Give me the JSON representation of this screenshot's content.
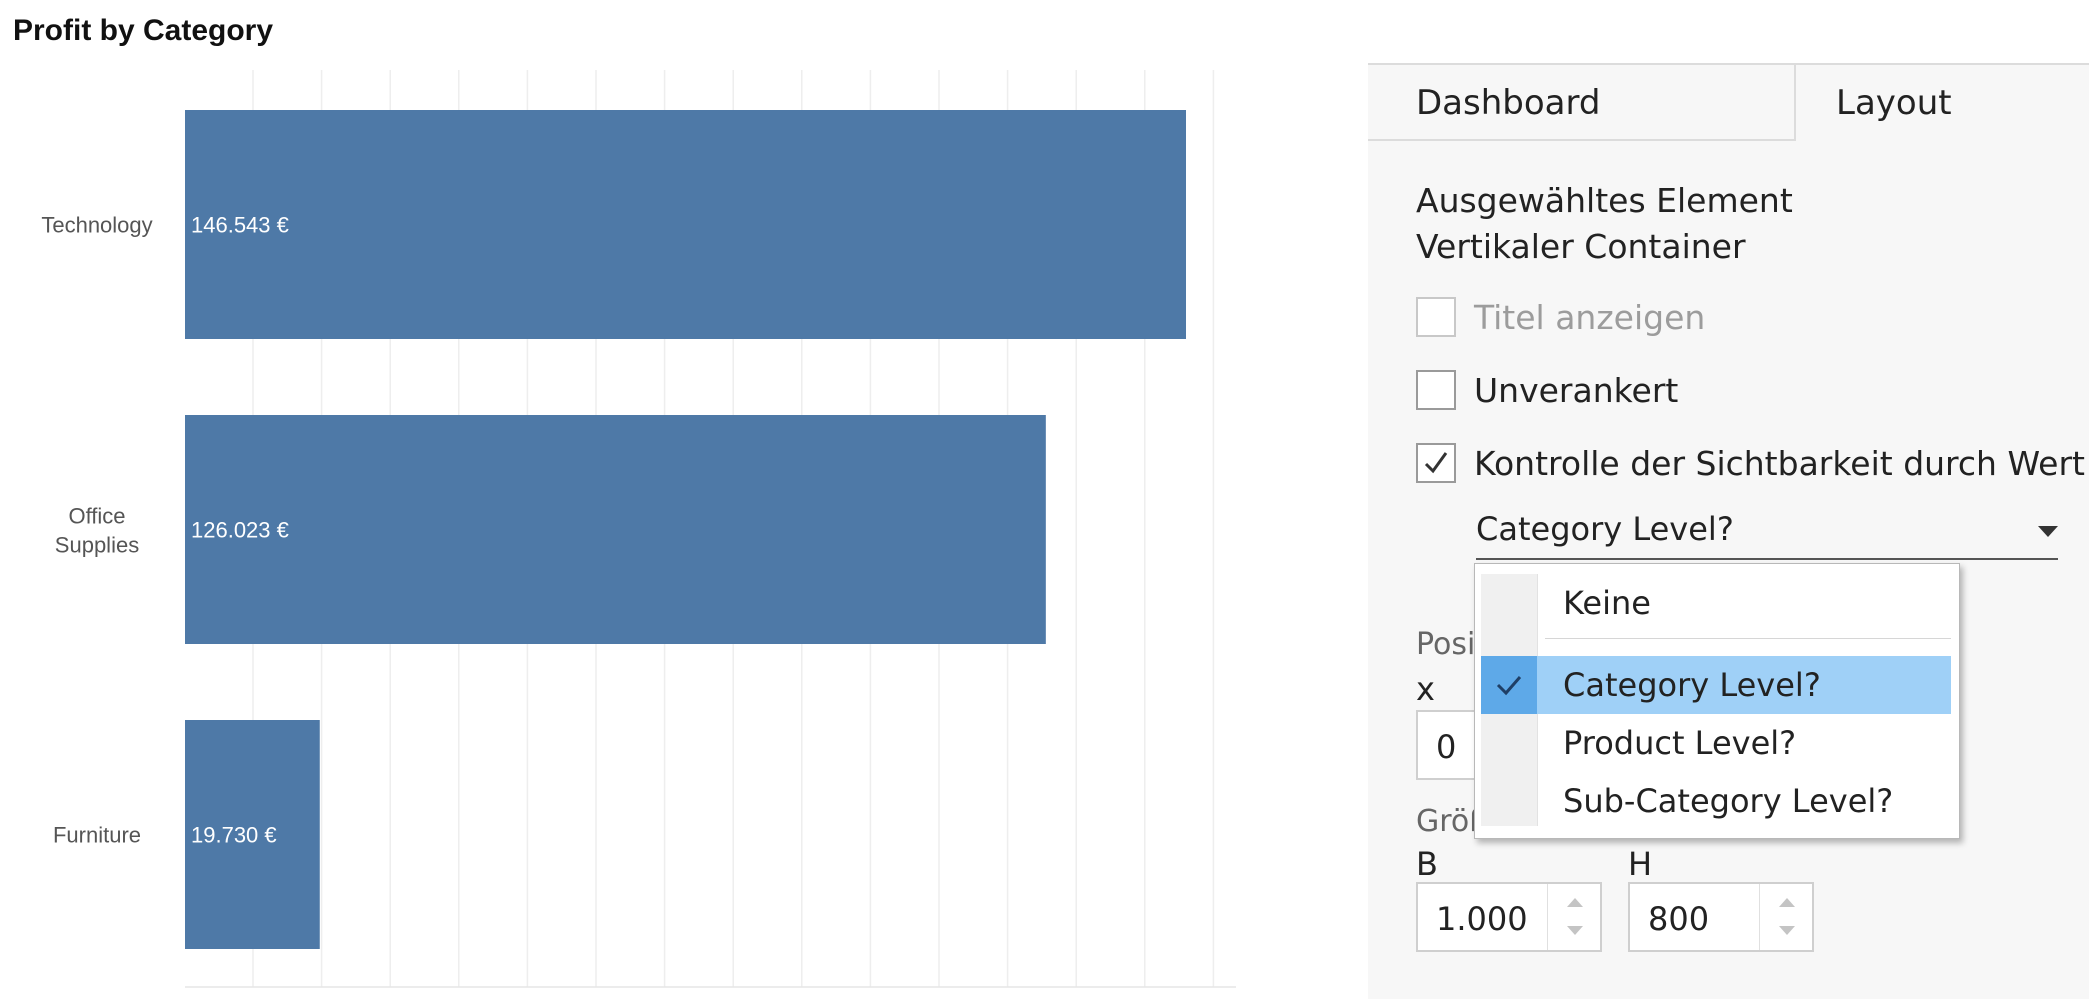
{
  "chart": {
    "title": "Profit by Category"
  },
  "chart_data": {
    "type": "bar",
    "orientation": "horizontal",
    "title": "Profit by Category",
    "categories": [
      "Technology",
      "Office Supplies",
      "Furniture"
    ],
    "values": [
      146543,
      126023,
      19730
    ],
    "data_labels": [
      "146.543 €",
      "126.023 €",
      "19.730 €"
    ],
    "xlim": [
      0,
      150000
    ],
    "grid": true,
    "bar_color": "#4e79a7"
  },
  "panel": {
    "tabs": [
      {
        "label": "Dashboard",
        "active": false
      },
      {
        "label": "Layout",
        "active": true
      }
    ],
    "selected_element_heading": "Ausgewähltes Element",
    "selected_element_name": "Vertikaler Container",
    "checkboxes": [
      {
        "label": "Titel anzeigen",
        "checked": false,
        "disabled": true
      },
      {
        "label": "Unverankert",
        "checked": false,
        "disabled": false
      },
      {
        "label": "Kontrolle der Sichtbarkeit durch Wert",
        "checked": true,
        "disabled": false
      }
    ],
    "visibility_parameter": "Category Level?",
    "position_label": "Posit",
    "x_label": "x",
    "x_value": "0",
    "size_label": "Größ",
    "width_label": "B",
    "width_value": "1.000",
    "height_label": "H",
    "height_value": "800"
  },
  "dropdown": {
    "options": [
      {
        "label": "Keine",
        "selected": false
      },
      {
        "label": "Category Level?",
        "selected": true
      },
      {
        "label": "Product Level?",
        "selected": false
      },
      {
        "label": "Sub-Category Level?",
        "selected": false
      }
    ]
  },
  "colors": {
    "bar": "#4e79a7",
    "selection_highlight": "#9fd0f7",
    "selection_check_cell": "#5ea9e8"
  }
}
